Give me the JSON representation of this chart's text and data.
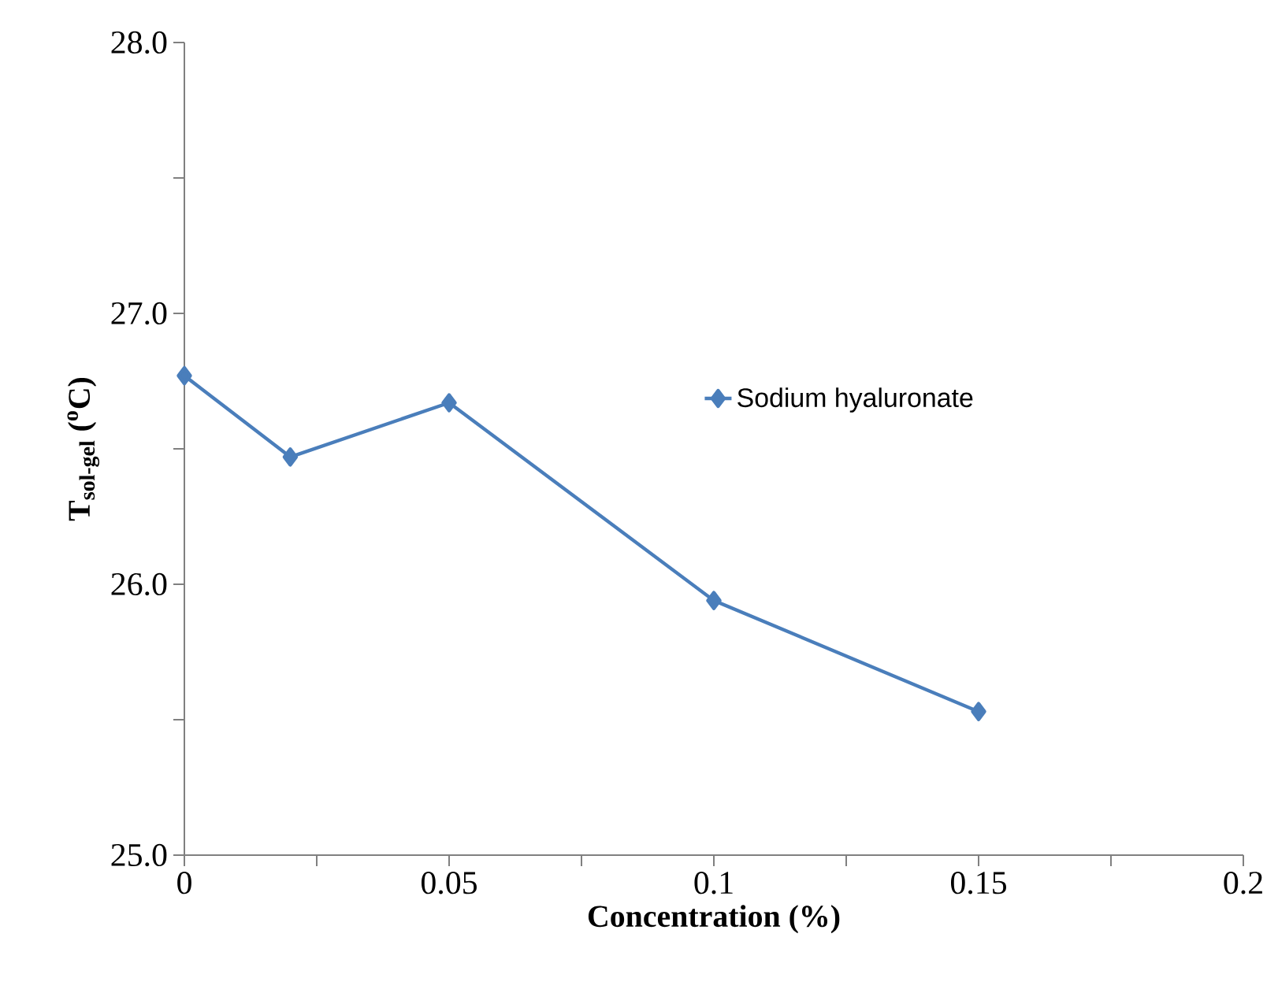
{
  "chart_data": {
    "type": "line",
    "xlabel": "Concentration (%)",
    "ylabel": "T$_{sol-gel}$ ($^{o}$C)",
    "x": [
      0,
      0.02,
      0.05,
      0.1,
      0.15
    ],
    "series": [
      {
        "name": "Sodium hyaluronate",
        "color": "#4a7ebb",
        "values": [
          26.77,
          26.47,
          26.67,
          25.94,
          25.53
        ]
      }
    ],
    "xlim": [
      0,
      0.2
    ],
    "xticks": [
      0,
      {
        "value": 0.025,
        "label": null
      },
      0.05,
      {
        "value": 0.075,
        "label": null
      },
      0.1,
      {
        "value": 0.125,
        "label": null
      },
      0.15,
      {
        "value": 0.175,
        "label": null
      },
      0.2
    ],
    "ylim": [
      25,
      28
    ],
    "yticks": [
      {
        "value": 25,
        "label": "25.0"
      },
      {
        "value": 25.5,
        "label": null
      },
      {
        "value": 26,
        "label": "26.0"
      },
      {
        "value": 26.5,
        "label": null
      },
      {
        "value": 27,
        "label": "27.0"
      },
      {
        "value": 27.5,
        "label": null
      },
      {
        "value": 28,
        "label": "28.0"
      }
    ],
    "legend": "right",
    "marker": "diamond",
    "line_style": "solid",
    "grid": false
  }
}
